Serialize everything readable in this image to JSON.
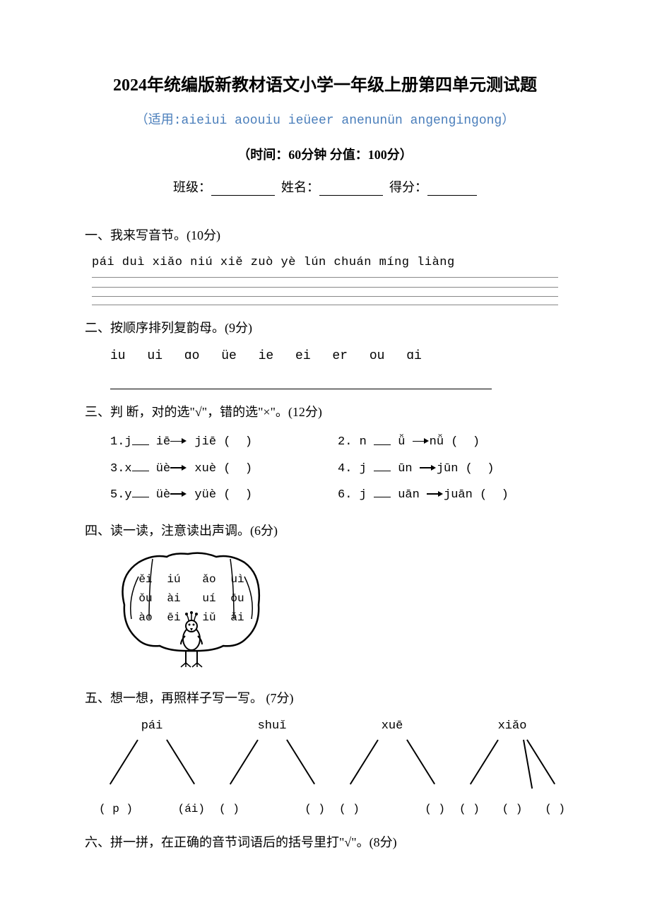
{
  "colors": {
    "background": "#ffffff",
    "text": "#000000",
    "subtitle": "#4a7ebb",
    "line": "#888888"
  },
  "title": "2024年统编版新教材语文小学一年级上册第四单元测试题",
  "subtitle": "（适用:aieiui  aoouiu ieüeer  anenunün angengingong）",
  "time_info": "（时间：60分钟  分值：100分）",
  "form": {
    "class_label": "班级：",
    "name_label": "姓名：",
    "score_label": "得分："
  },
  "q1": {
    "title": "一、我来写音节。(10分)",
    "pinyin": "pái duì    xiǎo niú    xiě zuò yè    lún  chuán    míng liàng"
  },
  "q2": {
    "title": "二、按顺序排列复韵母。(9分)",
    "items": "iu   ui   ɑo   üe   ie   ei   er   ou   ɑi"
  },
  "q3": {
    "title": "三、判 断，对的选\"√\"，错的选\"×\"。(12分)",
    "rows": [
      {
        "a_no": "1.",
        "a_l": "j",
        "a_m": "iē",
        "a_r": "jiē",
        "b_no": "2.",
        "b_l": "n",
        "b_m": "ǚ",
        "b_r": "nǚ"
      },
      {
        "a_no": "3.",
        "a_l": "x",
        "a_m": "üè",
        "a_r": "xuè",
        "b_no": "4.",
        "b_l": "j",
        "b_m": "ūn",
        "b_r": "jūn"
      },
      {
        "a_no": "5.",
        "a_l": "y",
        "a_m": "üè",
        "a_r": "yüè",
        "b_no": "6.",
        "b_l": "j",
        "b_m": "uān",
        "b_r": "juān"
      }
    ]
  },
  "q4": {
    "title": "四、读一读，注意读出声调。(6分)",
    "peacock_rows": [
      [
        "ěi",
        "iú",
        "ǎo",
        "uì"
      ],
      [
        "ǒu",
        "ài",
        "uí",
        "ōu"
      ],
      [
        "ào",
        "ēi",
        "iǔ",
        "ǎi"
      ]
    ]
  },
  "q5": {
    "title": "五、想一想，再照样子写一写。 (7分)",
    "items": [
      {
        "top": "pái",
        "left": "( p )",
        "right": "(ái)"
      },
      {
        "top": "shuǐ",
        "left": "(  )",
        "right": "(  )"
      },
      {
        "top": "xuē",
        "left": "(  )",
        "right": "(  )"
      },
      {
        "top": "xiǎo",
        "left": "(  )",
        "mid": "(  )",
        "right": "(  )"
      }
    ]
  },
  "q6": {
    "title": "六、拼一拼，在正确的音节词语后的括号里打\"√\"。(8分)"
  }
}
